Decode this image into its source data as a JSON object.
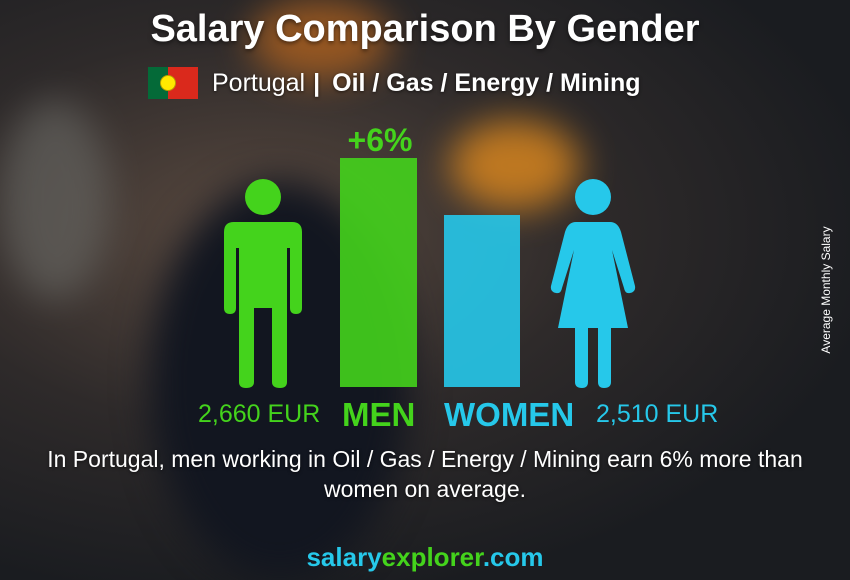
{
  "title": "Salary Comparison By Gender",
  "subtitle": {
    "country": "Portugal",
    "separator": "|",
    "sector": "Oil / Gas / Energy / Mining"
  },
  "colors": {
    "men": "#44d31c",
    "women": "#26c8ea"
  },
  "chart_data": {
    "type": "bar",
    "categories": [
      "MEN",
      "WOMEN"
    ],
    "values": [
      2660,
      2510
    ],
    "value_labels": [
      "2,660 EUR",
      "2,510 EUR"
    ],
    "unit": "EUR",
    "difference_label": "+6%",
    "ylabel": "Average Monthly Salary"
  },
  "description": "In Portugal, men working in Oil / Gas / Energy / Mining earn 6% more than women on average.",
  "brand": {
    "part1": "salary",
    "part2": "explorer",
    "part3": ".com"
  }
}
